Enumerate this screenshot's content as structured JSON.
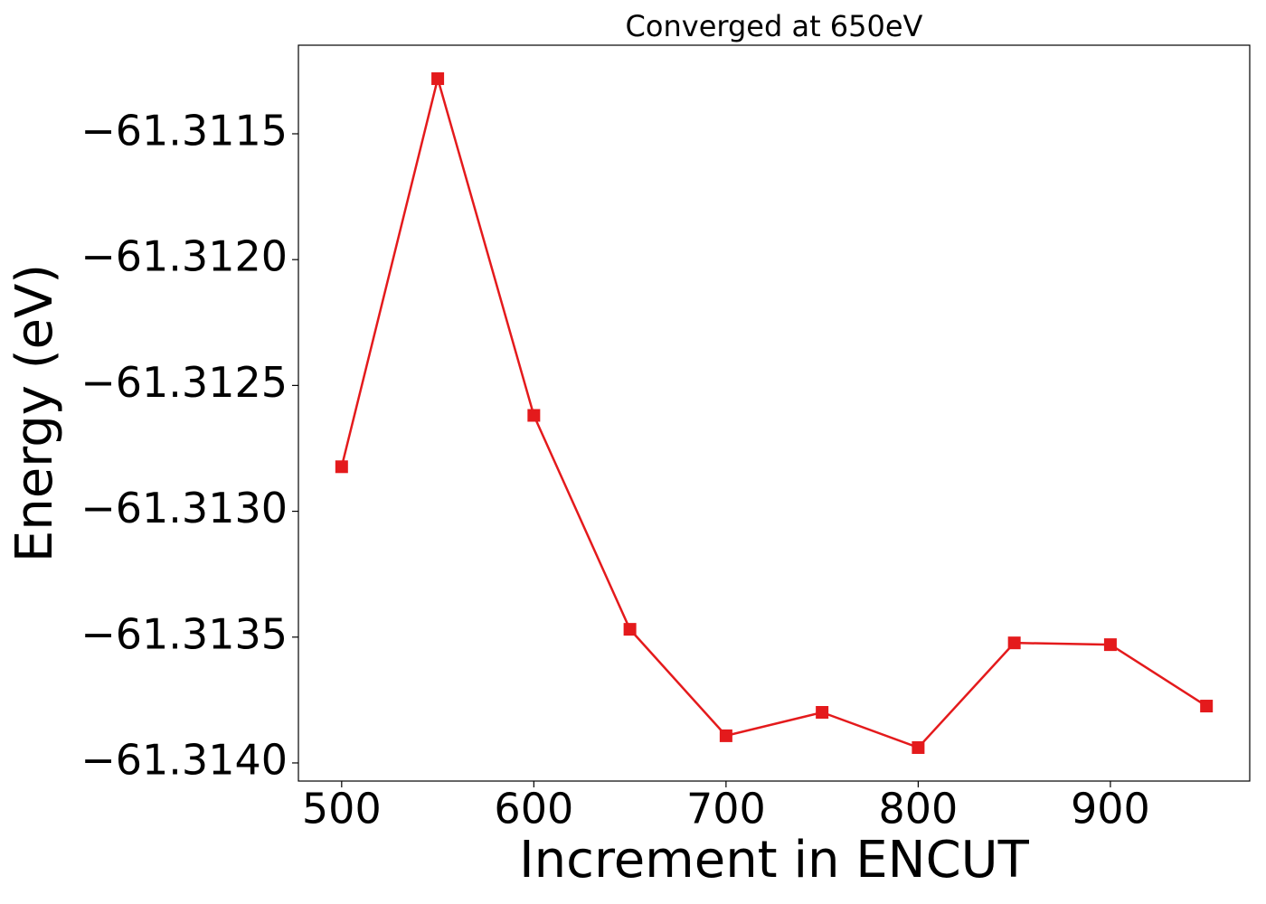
{
  "chart_data": {
    "type": "line",
    "title": "Converged at 650eV",
    "xlabel": "Increment in ENCUT",
    "ylabel": "Energy (eV)",
    "x": [
      500,
      550,
      600,
      650,
      700,
      750,
      800,
      850,
      900,
      950
    ],
    "series": [
      {
        "color": "#e41a1c",
        "marker": "square",
        "values": [
          -61.312823,
          -61.311281,
          -61.312619,
          -61.313469,
          -61.313892,
          -61.313799,
          -61.313939,
          -61.313523,
          -61.31353,
          -61.313774
        ]
      }
    ],
    "xlim": [
      477.5,
      972.5
    ],
    "ylim": [
      -61.314072,
      -61.311148
    ],
    "xticks": [
      500,
      600,
      700,
      800,
      900
    ],
    "yticks": [
      {
        "value": -61.3115,
        "label": "−61.3115"
      },
      {
        "value": -61.312,
        "label": "−61.3120"
      },
      {
        "value": -61.3125,
        "label": "−61.3125"
      },
      {
        "value": -61.313,
        "label": "−61.3130"
      },
      {
        "value": -61.3135,
        "label": "−61.3135"
      },
      {
        "value": -61.314,
        "label": "−61.3140"
      }
    ],
    "grid": false
  }
}
